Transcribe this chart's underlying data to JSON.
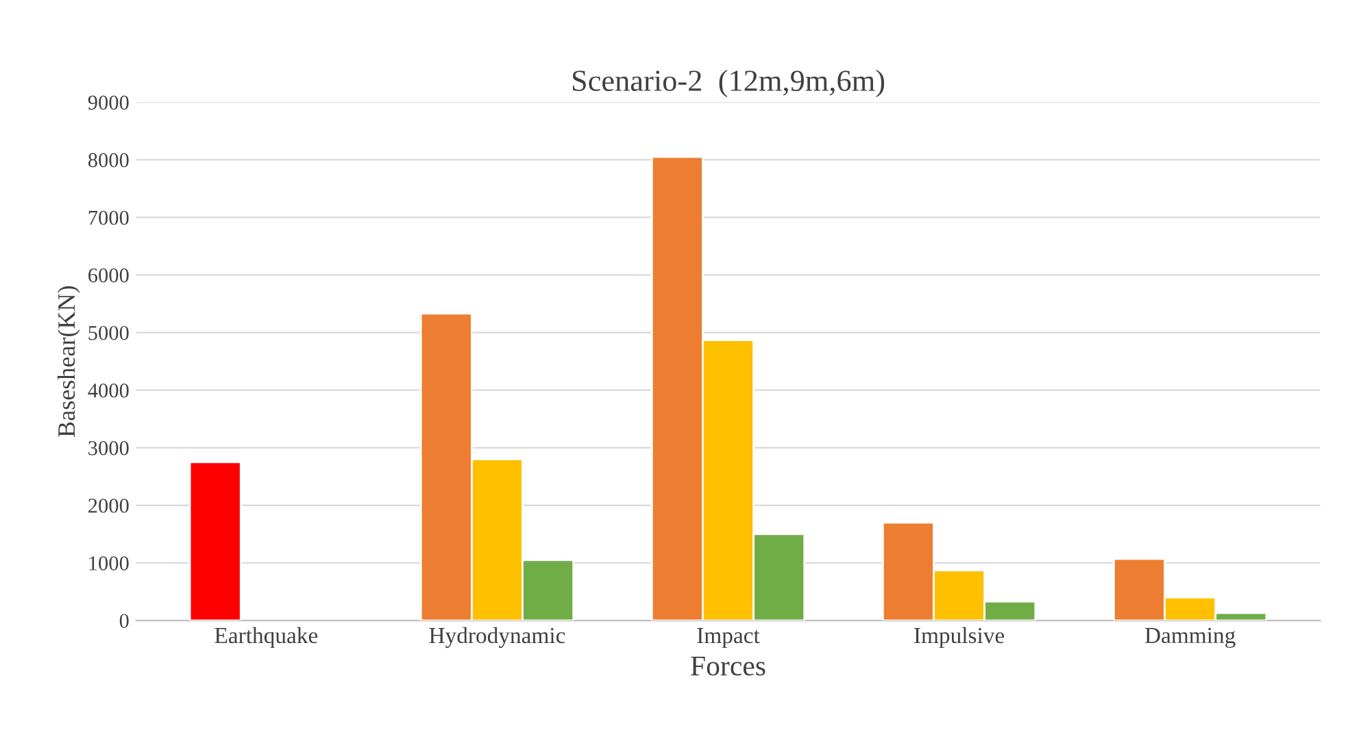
{
  "chart_data": {
    "type": "bar",
    "title": "Scenario-2  (12m,9m,6m)",
    "xlabel": "Forces",
    "ylabel": "Baseshear(KN)",
    "categories": [
      "Earthquake",
      "Hydrodynamic",
      "Impact",
      "Impulsive",
      "Damming"
    ],
    "series": [
      {
        "colors": [
          "#ff0000",
          "#ed7d31",
          "#ed7d31",
          "#ed7d31",
          "#ed7d31"
        ],
        "values": [
          2750,
          5330,
          8050,
          1700,
          1070
        ]
      },
      {
        "color": "#ffc000",
        "values": [
          null,
          2800,
          4870,
          870,
          400
        ]
      },
      {
        "color": "#70ad47",
        "values": [
          null,
          1050,
          1500,
          330,
          130
        ]
      }
    ],
    "ylim": [
      0,
      9000
    ],
    "yticks": [
      0,
      1000,
      2000,
      3000,
      4000,
      5000,
      6000,
      7000,
      8000,
      9000
    ],
    "grid": "y",
    "legend": false
  }
}
